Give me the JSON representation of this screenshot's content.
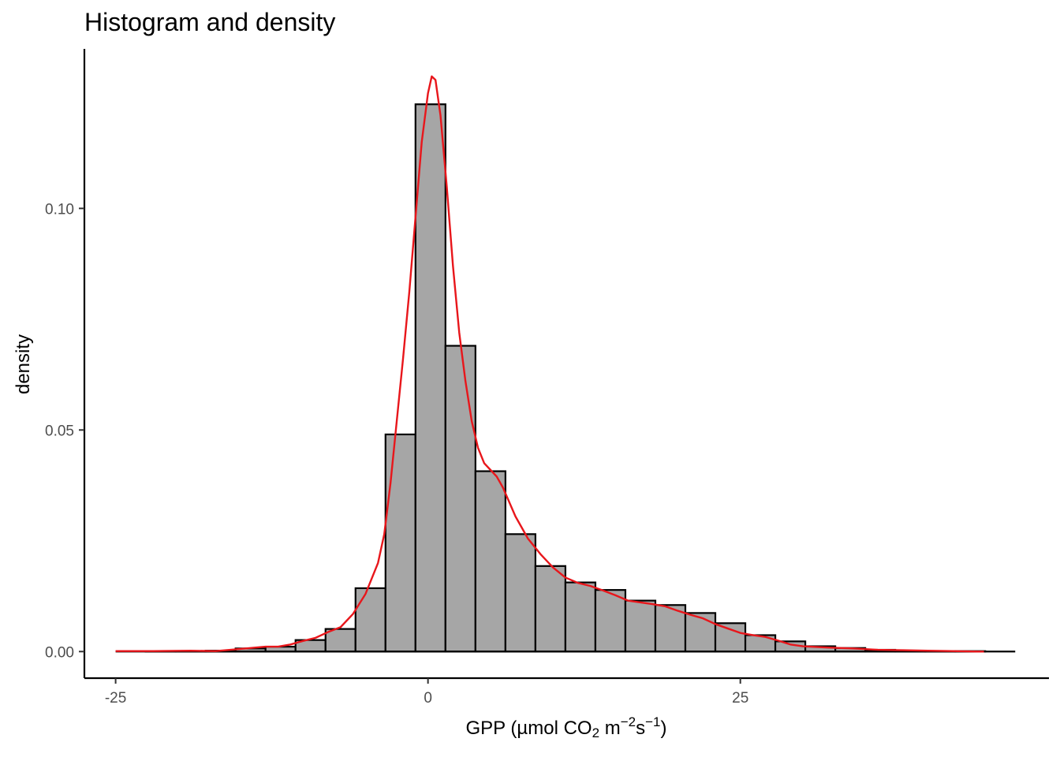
{
  "chart_data": {
    "type": "bar",
    "title": "Histogram and density",
    "xlabel": {
      "parts": [
        "GPP (",
        "µ",
        "mol CO",
        "2",
        " m",
        "−2",
        "s",
        "−1",
        ")"
      ]
    },
    "ylabel": "density",
    "xlim": [
      -27.5,
      49.7
    ],
    "ylim": [
      -0.006,
      0.136
    ],
    "x_ticks": [
      {
        "value": -25,
        "label": "-25"
      },
      {
        "value": 0,
        "label": "0"
      },
      {
        "value": 25,
        "label": "25"
      }
    ],
    "y_ticks": [
      {
        "value": 0,
        "label": "0.00"
      },
      {
        "value": 0.05,
        "label": "0.05"
      },
      {
        "value": 0.1,
        "label": "0.10"
      }
    ],
    "histogram": {
      "fill": "#a6a6a6",
      "stroke": "#000000",
      "bins": [
        {
          "x0": -25.0,
          "x1": -22.6,
          "value": 0.0
        },
        {
          "x0": -22.6,
          "x1": -20.2,
          "value": 0.0001
        },
        {
          "x0": -20.2,
          "x1": -17.8,
          "value": 0.0001
        },
        {
          "x0": -17.8,
          "x1": -15.4,
          "value": 0.0002
        },
        {
          "x0": -15.4,
          "x1": -13.0,
          "value": 0.0007
        },
        {
          "x0": -13.0,
          "x1": -10.6,
          "value": 0.0011
        },
        {
          "x0": -10.6,
          "x1": -8.2,
          "value": 0.0026
        },
        {
          "x0": -8.2,
          "x1": -5.8,
          "value": 0.0051
        },
        {
          "x0": -5.8,
          "x1": -3.4,
          "value": 0.0143
        },
        {
          "x0": -3.4,
          "x1": -1.0,
          "value": 0.049
        },
        {
          "x0": -1.0,
          "x1": 1.4,
          "value": 0.1235
        },
        {
          "x0": 1.4,
          "x1": 3.8,
          "value": 0.069
        },
        {
          "x0": 3.8,
          "x1": 6.2,
          "value": 0.0407
        },
        {
          "x0": 6.2,
          "x1": 8.6,
          "value": 0.0265
        },
        {
          "x0": 8.6,
          "x1": 11.0,
          "value": 0.0193
        },
        {
          "x0": 11.0,
          "x1": 13.4,
          "value": 0.0156
        },
        {
          "x0": 13.4,
          "x1": 15.8,
          "value": 0.0139
        },
        {
          "x0": 15.8,
          "x1": 18.2,
          "value": 0.0115
        },
        {
          "x0": 18.2,
          "x1": 20.6,
          "value": 0.0105
        },
        {
          "x0": 20.6,
          "x1": 23.0,
          "value": 0.0087
        },
        {
          "x0": 23.0,
          "x1": 25.4,
          "value": 0.0064
        },
        {
          "x0": 25.4,
          "x1": 27.8,
          "value": 0.0037
        },
        {
          "x0": 27.8,
          "x1": 30.2,
          "value": 0.0023
        },
        {
          "x0": 30.2,
          "x1": 32.6,
          "value": 0.0012
        },
        {
          "x0": 32.6,
          "x1": 35.0,
          "value": 0.0008
        },
        {
          "x0": 35.0,
          "x1": 37.4,
          "value": 0.0004
        },
        {
          "x0": 37.4,
          "x1": 39.8,
          "value": 0.0002
        },
        {
          "x0": 39.8,
          "x1": 42.2,
          "value": 0.0001
        },
        {
          "x0": 42.2,
          "x1": 44.6,
          "value": 0.0001
        },
        {
          "x0": 44.6,
          "x1": 47.0,
          "value": 0.0
        }
      ]
    },
    "density": {
      "color": "#e8161b",
      "points": [
        [
          -25.0,
          0.0001
        ],
        [
          -22.0,
          0.0001
        ],
        [
          -19.0,
          0.0002
        ],
        [
          -17.0,
          0.0001
        ],
        [
          -15.0,
          0.0006
        ],
        [
          -13.0,
          0.0011
        ],
        [
          -12.0,
          0.0011
        ],
        [
          -11.0,
          0.0016
        ],
        [
          -10.0,
          0.0024
        ],
        [
          -9.0,
          0.0031
        ],
        [
          -8.0,
          0.0044
        ],
        [
          -7.0,
          0.0055
        ],
        [
          -6.0,
          0.0085
        ],
        [
          -5.0,
          0.013
        ],
        [
          -4.0,
          0.02
        ],
        [
          -3.5,
          0.0265
        ],
        [
          -3.0,
          0.038
        ],
        [
          -2.5,
          0.052
        ],
        [
          -2.0,
          0.066
        ],
        [
          -1.5,
          0.081
        ],
        [
          -1.0,
          0.098
        ],
        [
          -0.5,
          0.115
        ],
        [
          0.0,
          0.126
        ],
        [
          0.3,
          0.1298
        ],
        [
          0.6,
          0.129
        ],
        [
          1.0,
          0.121
        ],
        [
          1.5,
          0.105
        ],
        [
          2.0,
          0.087
        ],
        [
          2.5,
          0.072
        ],
        [
          3.0,
          0.061
        ],
        [
          3.5,
          0.052
        ],
        [
          4.0,
          0.046
        ],
        [
          4.5,
          0.0425
        ],
        [
          5.0,
          0.041
        ],
        [
          5.5,
          0.0395
        ],
        [
          6.0,
          0.037
        ],
        [
          7.0,
          0.0305
        ],
        [
          8.0,
          0.0255
        ],
        [
          9.0,
          0.022
        ],
        [
          10.0,
          0.019
        ],
        [
          11.0,
          0.0167
        ],
        [
          12.0,
          0.0155
        ],
        [
          13.0,
          0.0148
        ],
        [
          14.0,
          0.0138
        ],
        [
          15.0,
          0.0127
        ],
        [
          16.0,
          0.0115
        ],
        [
          17.0,
          0.0111
        ],
        [
          18.0,
          0.0107
        ],
        [
          19.0,
          0.0102
        ],
        [
          20.0,
          0.0092
        ],
        [
          21.0,
          0.0083
        ],
        [
          22.0,
          0.0075
        ],
        [
          23.0,
          0.0062
        ],
        [
          24.0,
          0.0052
        ],
        [
          25.0,
          0.0042
        ],
        [
          26.0,
          0.0037
        ],
        [
          27.0,
          0.0033
        ],
        [
          28.0,
          0.0025
        ],
        [
          29.0,
          0.0016
        ],
        [
          30.0,
          0.0012
        ],
        [
          32.0,
          0.0009
        ],
        [
          34.0,
          0.0007
        ],
        [
          36.0,
          0.0004
        ],
        [
          38.0,
          0.0003
        ],
        [
          40.0,
          0.0002
        ],
        [
          42.0,
          0.0001
        ],
        [
          44.0,
          0.0
        ],
        [
          44.5,
          0.0
        ]
      ]
    },
    "baseline_extent": [
      -25.0,
      47.0
    ],
    "grid": false,
    "legend": "none"
  }
}
